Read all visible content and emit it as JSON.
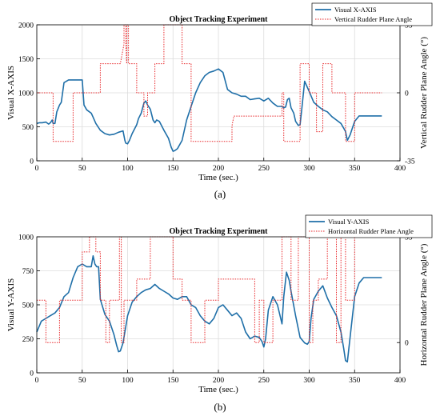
{
  "colors": {
    "primary": "#1f6fa8",
    "secondary": "#e8282b",
    "grid": "#dcdcdc"
  },
  "chart_data": [
    {
      "type": "line",
      "caption": "(a)",
      "title": "Object Tracking Experiment",
      "xlabel": "Time (sec.)",
      "ylabel": "Visual X-AXIS",
      "ylabel_right": "Vertical Rudder Plane Angle (°)",
      "xlim": [
        0,
        400
      ],
      "ylim": [
        0,
        2000
      ],
      "ylim_right": [
        -35,
        35
      ],
      "xticks": [
        "0",
        "50",
        "100",
        "150",
        "200",
        "250",
        "300",
        "350",
        "400"
      ],
      "yticks": [
        "0",
        "500",
        "1000",
        "1500",
        "2000"
      ],
      "yticks_right": [
        "-35",
        "0",
        "35"
      ],
      "grid": true,
      "legend_position": "top-right",
      "series": [
        {
          "name": "Visual X-AXIS",
          "axis": "left",
          "style": "solid",
          "x": [
            0,
            3,
            6,
            10,
            13,
            15,
            17,
            18,
            20,
            22,
            25,
            27,
            30,
            35,
            40,
            45,
            48,
            50,
            52,
            55,
            58,
            60,
            62,
            65,
            70,
            75,
            80,
            85,
            90,
            95,
            97,
            98,
            100,
            102,
            105,
            110,
            112,
            115,
            118,
            120,
            122,
            125,
            128,
            130,
            132,
            135,
            140,
            145,
            148,
            150,
            152,
            155,
            160,
            165,
            170,
            175,
            180,
            185,
            190,
            195,
            200,
            205,
            210,
            215,
            220,
            225,
            230,
            235,
            240,
            245,
            250,
            255,
            260,
            265,
            270,
            272,
            274,
            276,
            278,
            280,
            283,
            285,
            288,
            290,
            292,
            295,
            300,
            305,
            310,
            315,
            320,
            325,
            330,
            335,
            338,
            340,
            342,
            345,
            348,
            350,
            355,
            360,
            365,
            370,
            375,
            380
          ],
          "y": [
            550,
            560,
            560,
            570,
            540,
            560,
            600,
            550,
            550,
            720,
            820,
            860,
            1150,
            1190,
            1190,
            1190,
            1190,
            1190,
            820,
            750,
            720,
            700,
            640,
            550,
            450,
            400,
            380,
            390,
            420,
            440,
            300,
            260,
            250,
            300,
            400,
            530,
            620,
            700,
            850,
            880,
            820,
            760,
            600,
            560,
            600,
            580,
            450,
            330,
            200,
            140,
            150,
            180,
            300,
            600,
            800,
            1000,
            1150,
            1250,
            1300,
            1320,
            1350,
            1300,
            1050,
            1000,
            980,
            950,
            950,
            900,
            910,
            920,
            880,
            920,
            850,
            800,
            800,
            780,
            790,
            900,
            920,
            780,
            700,
            580,
            520,
            530,
            780,
            1170,
            1020,
            860,
            800,
            750,
            720,
            650,
            600,
            550,
            480,
            430,
            300,
            380,
            500,
            580,
            660,
            660,
            660,
            660,
            660,
            660
          ],
          "color_key": "primary"
        },
        {
          "name": "Vertical Rudder Plane Angle",
          "axis": "right",
          "style": "dotted",
          "x": [
            0,
            18,
            18,
            24,
            24,
            40,
            40,
            52,
            52,
            70,
            70,
            92,
            92,
            96,
            96,
            98,
            98,
            99,
            99,
            101,
            101,
            110,
            110,
            118,
            118,
            122,
            122,
            130,
            130,
            140,
            140,
            160,
            160,
            170,
            170,
            215,
            215,
            217,
            217,
            270,
            270,
            272,
            272,
            280,
            280,
            290,
            290,
            300,
            300,
            308,
            308,
            315,
            315,
            325,
            325,
            340,
            340,
            350,
            350,
            380
          ],
          "y": [
            0,
            0,
            -25,
            -25,
            -25,
            -25,
            0,
            0,
            0,
            0,
            15,
            15,
            15,
            25,
            35,
            35,
            25,
            15,
            35,
            35,
            15,
            15,
            0,
            0,
            -12,
            -12,
            0,
            0,
            15,
            15,
            35,
            35,
            15,
            15,
            -25,
            -25,
            -17,
            -12,
            -12,
            -12,
            0,
            0,
            -25,
            -25,
            -25,
            -25,
            15,
            15,
            0,
            0,
            -20,
            -20,
            15,
            15,
            0,
            0,
            -25,
            -25,
            0,
            0
          ],
          "color_key": "secondary"
        }
      ]
    },
    {
      "type": "line",
      "caption": "(b)",
      "title": "Object Tracking Experiment",
      "xlabel": "Time (sec.)",
      "ylabel": "Visual Y-AXIS",
      "ylabel_right": "Horizontal Rudder Plane Angle (°)",
      "xlim": [
        0,
        400
      ],
      "ylim": [
        0,
        1000
      ],
      "ylim_right": [
        -10,
        35
      ],
      "xticks": [
        "0",
        "50",
        "100",
        "150",
        "200",
        "250",
        "300",
        "350",
        "400"
      ],
      "yticks": [
        "0",
        "250",
        "500",
        "750",
        "1000"
      ],
      "yticks_right": [
        "0",
        "35"
      ],
      "grid": true,
      "legend_position": "top-right",
      "series": [
        {
          "name": "Visual Y-AXIS",
          "axis": "left",
          "style": "solid",
          "x": [
            0,
            5,
            10,
            15,
            20,
            25,
            30,
            35,
            40,
            45,
            50,
            55,
            58,
            60,
            62,
            64,
            66,
            68,
            70,
            75,
            80,
            85,
            88,
            90,
            92,
            95,
            100,
            105,
            110,
            115,
            120,
            125,
            130,
            135,
            140,
            145,
            150,
            155,
            160,
            165,
            170,
            175,
            180,
            185,
            190,
            195,
            200,
            205,
            210,
            215,
            220,
            225,
            230,
            235,
            240,
            245,
            248,
            250,
            252,
            255,
            260,
            265,
            270,
            272,
            275,
            278,
            280,
            285,
            290,
            295,
            298,
            300,
            302,
            305,
            310,
            315,
            320,
            325,
            330,
            335,
            338,
            340,
            342,
            345,
            350,
            355,
            360,
            365,
            370,
            375,
            380
          ],
          "y": [
            300,
            380,
            400,
            420,
            440,
            480,
            560,
            590,
            700,
            780,
            800,
            780,
            780,
            780,
            860,
            800,
            780,
            780,
            540,
            430,
            380,
            280,
            200,
            155,
            160,
            220,
            420,
            520,
            560,
            590,
            610,
            620,
            650,
            620,
            600,
            580,
            550,
            540,
            560,
            560,
            500,
            480,
            420,
            380,
            360,
            400,
            480,
            500,
            460,
            420,
            440,
            400,
            300,
            250,
            270,
            260,
            230,
            190,
            250,
            460,
            560,
            500,
            360,
            560,
            740,
            680,
            600,
            420,
            260,
            220,
            210,
            230,
            400,
            540,
            600,
            640,
            550,
            480,
            420,
            300,
            180,
            90,
            80,
            260,
            560,
            660,
            700,
            700,
            700,
            700,
            700
          ],
          "color_key": "primary"
        },
        {
          "name": "Horizontal Rudder Plane Angle",
          "axis": "right",
          "style": "dotted",
          "x": [
            0,
            10,
            10,
            25,
            25,
            50,
            50,
            58,
            58,
            65,
            65,
            70,
            70,
            76,
            76,
            80,
            80,
            91,
            91,
            93,
            93,
            96,
            96,
            110,
            110,
            125,
            125,
            150,
            150,
            160,
            160,
            170,
            170,
            185,
            185,
            200,
            200,
            240,
            240,
            245,
            245,
            250,
            250,
            260,
            260,
            270,
            270,
            280,
            280,
            288,
            288,
            300,
            300,
            304,
            304,
            310,
            310,
            320,
            320,
            330,
            330,
            335,
            335,
            340,
            340,
            350,
            350,
            380
          ],
          "y": [
            14,
            14,
            0,
            0,
            14,
            14,
            30,
            30,
            35,
            35,
            30,
            30,
            14,
            14,
            0,
            0,
            14,
            14,
            35,
            35,
            0,
            0,
            14,
            14,
            21,
            21,
            35,
            35,
            21,
            21,
            14,
            14,
            0,
            0,
            14,
            14,
            21,
            21,
            0,
            0,
            14,
            14,
            0,
            0,
            14,
            14,
            35,
            35,
            14,
            14,
            35,
            35,
            0,
            0,
            14,
            14,
            21,
            21,
            35,
            35,
            0,
            0,
            35,
            35,
            14,
            14,
            35,
            35
          ],
          "color_key": "secondary"
        }
      ]
    }
  ]
}
